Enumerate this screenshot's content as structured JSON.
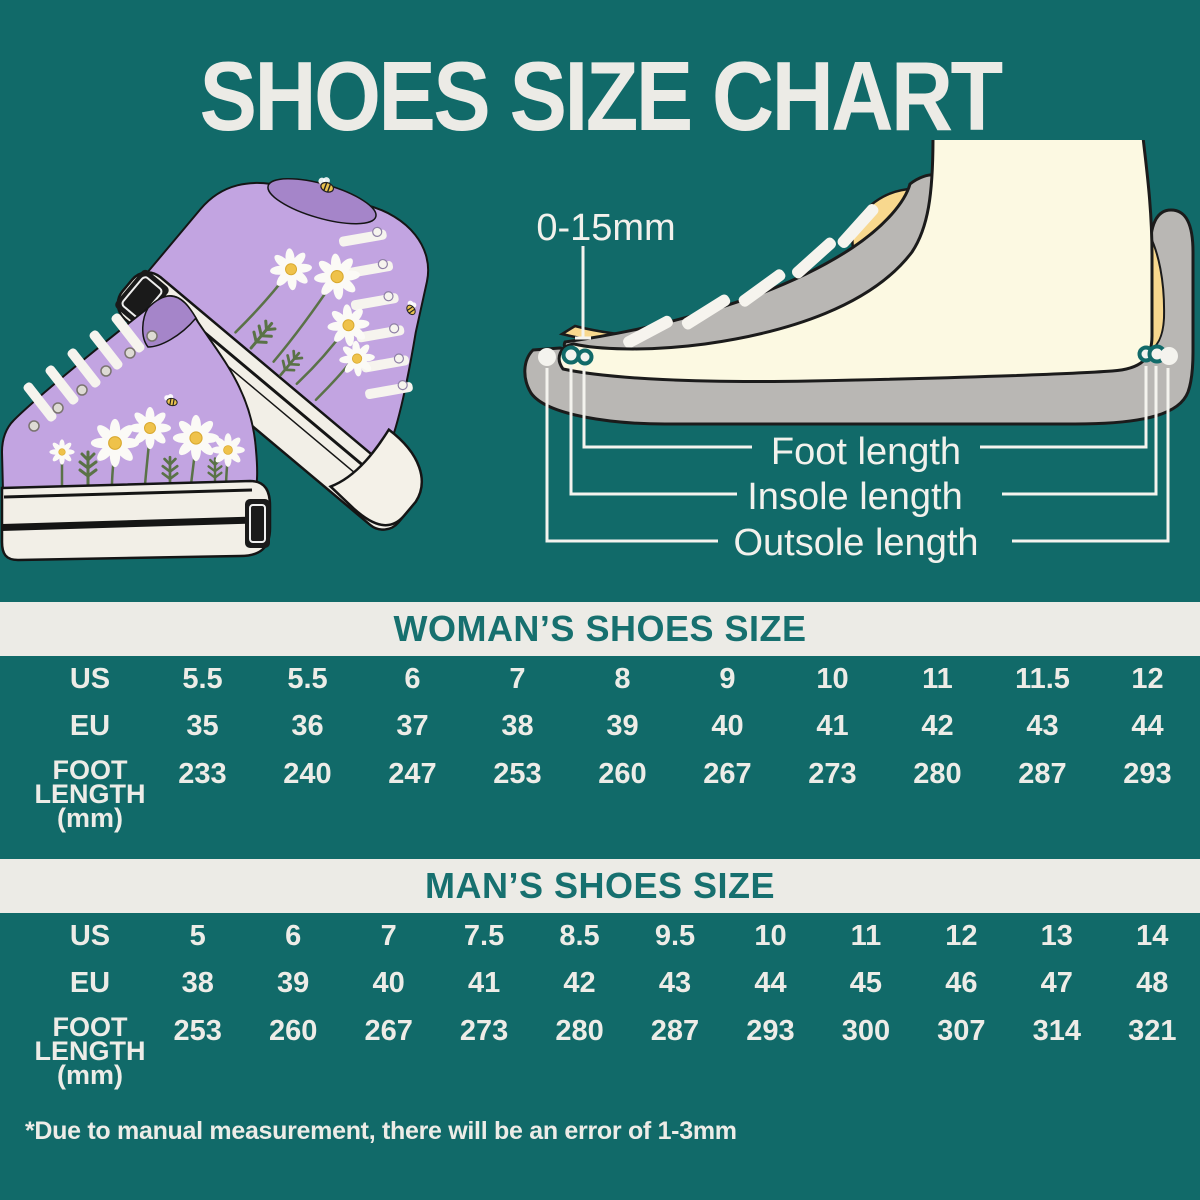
{
  "title": "SHOES SIZE CHART",
  "diagram": {
    "gap_label": "0-15mm",
    "measure_labels": [
      "Foot length",
      "Insole length",
      "Outsole length"
    ]
  },
  "chart_data": [
    {
      "type": "table",
      "title": "WOMAN’S SHOES SIZE",
      "row_labels": [
        "US",
        "EU",
        "FOOT LENGTH (mm)"
      ],
      "rows": [
        [
          "5.5",
          "5.5",
          "6",
          "7",
          "8",
          "9",
          "10",
          "11",
          "11.5",
          "12"
        ],
        [
          "35",
          "36",
          "37",
          "38",
          "39",
          "40",
          "41",
          "42",
          "43",
          "44"
        ],
        [
          "233",
          "240",
          "247",
          "253",
          "260",
          "267",
          "273",
          "280",
          "287",
          "293"
        ]
      ]
    },
    {
      "type": "table",
      "title": "MAN’S SHOES SIZE",
      "row_labels": [
        "US",
        "EU",
        "FOOT LENGTH (mm)"
      ],
      "rows": [
        [
          "5",
          "6",
          "7",
          "7.5",
          "8.5",
          "9.5",
          "10",
          "11",
          "12",
          "13",
          "14"
        ],
        [
          "38",
          "39",
          "40",
          "41",
          "42",
          "43",
          "44",
          "45",
          "46",
          "47",
          "48"
        ],
        [
          "253",
          "260",
          "267",
          "273",
          "280",
          "287",
          "293",
          "300",
          "307",
          "314",
          "321"
        ]
      ]
    }
  ],
  "footnote": "*Due to manual measurement, there will be an error of 1-3mm",
  "colors": {
    "background": "#116A69",
    "band_background": "#ECEBE6",
    "band_text": "#17706F",
    "light_text": "#EDECE7",
    "shoe_gray": "#B9B7B4",
    "insole_yellow": "#F8D88E",
    "foot_cream": "#FCF9E2",
    "sneaker_lavender": "#C2A4E1"
  }
}
